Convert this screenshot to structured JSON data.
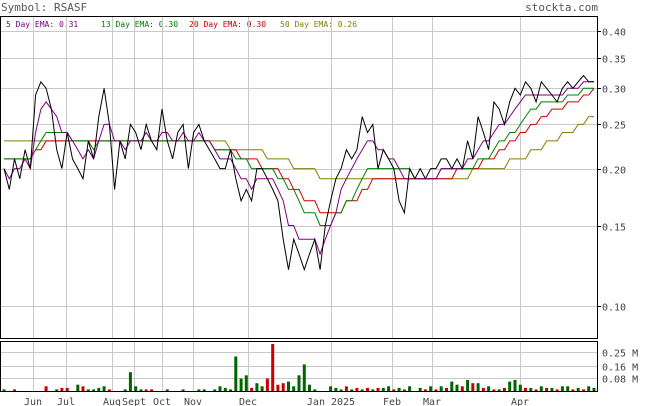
{
  "header": {
    "symbol_label": "Symbol: RSASF",
    "site": "stockta.com"
  },
  "legend": [
    {
      "text": "5 Day EMA: 0.31",
      "color": "#800080"
    },
    {
      "text": "13 Day EMA: 0.30",
      "color": "#008000"
    },
    {
      "text": "20 Day EMA: 0.30",
      "color": "#cc0000"
    },
    {
      "text": "50 Day EMA: 0.26",
      "color": "#808000"
    }
  ],
  "chart_data": {
    "type": "line",
    "y_scale": "log",
    "ylim": [
      0.085,
      0.43
    ],
    "price_ticks": [
      "0.40",
      "0.35",
      "0.30",
      "0.25",
      "0.20",
      "0.15",
      "0.10"
    ],
    "volume_ticks": [
      "0.25 M",
      "0.16 M",
      "0.08 M"
    ],
    "volume_max": 0.3,
    "x_labels": [
      "Jun",
      "Jul",
      "Aug",
      "Sept",
      "Oct",
      "Nov",
      "Dec",
      "Jan 2025",
      "Feb",
      "Mar",
      "Apr"
    ],
    "series": [
      {
        "color": "#000000",
        "values": [
          0.2,
          0.18,
          0.21,
          0.19,
          0.22,
          0.2,
          0.29,
          0.31,
          0.3,
          0.27,
          0.22,
          0.2,
          0.24,
          0.21,
          0.2,
          0.19,
          0.23,
          0.21,
          0.26,
          0.3,
          0.25,
          0.18,
          0.23,
          0.21,
          0.25,
          0.24,
          0.22,
          0.25,
          0.23,
          0.22,
          0.27,
          0.23,
          0.21,
          0.24,
          0.25,
          0.2,
          0.24,
          0.25,
          0.23,
          0.22,
          0.21,
          0.2,
          0.2,
          0.22,
          0.19,
          0.17,
          0.18,
          0.17,
          0.2,
          0.2,
          0.19,
          0.18,
          0.17,
          0.14,
          0.12,
          0.14,
          0.13,
          0.12,
          0.13,
          0.14,
          0.12,
          0.15,
          0.17,
          0.19,
          0.2,
          0.22,
          0.21,
          0.22,
          0.26,
          0.24,
          0.25,
          0.2,
          0.22,
          0.21,
          0.2,
          0.17,
          0.16,
          0.2,
          0.19,
          0.2,
          0.19,
          0.2,
          0.2,
          0.21,
          0.21,
          0.2,
          0.21,
          0.2,
          0.23,
          0.21,
          0.26,
          0.24,
          0.22,
          0.28,
          0.27,
          0.25,
          0.28,
          0.3,
          0.29,
          0.31,
          0.3,
          0.28,
          0.31,
          0.3,
          0.29,
          0.28,
          0.3,
          0.31,
          0.3,
          0.31,
          0.32,
          0.31,
          0.31
        ],
        "name": ""
      },
      {
        "color": "#800080",
        "values": [
          0.2,
          0.19,
          0.2,
          0.2,
          0.21,
          0.2,
          0.24,
          0.27,
          0.28,
          0.27,
          0.26,
          0.24,
          0.24,
          0.23,
          0.22,
          0.21,
          0.22,
          0.21,
          0.23,
          0.25,
          0.25,
          0.23,
          0.23,
          0.22,
          0.23,
          0.23,
          0.23,
          0.24,
          0.23,
          0.23,
          0.24,
          0.24,
          0.23,
          0.23,
          0.24,
          0.23,
          0.23,
          0.24,
          0.23,
          0.23,
          0.22,
          0.21,
          0.21,
          0.21,
          0.2,
          0.19,
          0.19,
          0.18,
          0.19,
          0.19,
          0.19,
          0.19,
          0.18,
          0.17,
          0.15,
          0.15,
          0.14,
          0.14,
          0.14,
          0.14,
          0.13,
          0.14,
          0.15,
          0.16,
          0.18,
          0.19,
          0.2,
          0.21,
          0.22,
          0.23,
          0.23,
          0.22,
          0.22,
          0.21,
          0.21,
          0.2,
          0.19,
          0.19,
          0.19,
          0.19,
          0.19,
          0.19,
          0.19,
          0.2,
          0.2,
          0.2,
          0.2,
          0.2,
          0.21,
          0.21,
          0.22,
          0.23,
          0.23,
          0.24,
          0.25,
          0.25,
          0.26,
          0.27,
          0.28,
          0.29,
          0.29,
          0.29,
          0.29,
          0.29,
          0.29,
          0.29,
          0.29,
          0.3,
          0.3,
          0.3,
          0.31,
          0.31,
          0.31
        ],
        "name": ""
      },
      {
        "color": "#008000",
        "values": [
          0.21,
          0.21,
          0.21,
          0.21,
          0.21,
          0.21,
          0.22,
          0.23,
          0.24,
          0.24,
          0.24,
          0.24,
          0.24,
          0.23,
          0.23,
          0.23,
          0.23,
          0.22,
          0.23,
          0.23,
          0.23,
          0.23,
          0.23,
          0.23,
          0.23,
          0.23,
          0.23,
          0.23,
          0.23,
          0.23,
          0.23,
          0.23,
          0.23,
          0.23,
          0.23,
          0.23,
          0.23,
          0.23,
          0.23,
          0.23,
          0.22,
          0.22,
          0.22,
          0.22,
          0.21,
          0.21,
          0.21,
          0.2,
          0.2,
          0.2,
          0.2,
          0.2,
          0.19,
          0.19,
          0.18,
          0.18,
          0.17,
          0.16,
          0.16,
          0.16,
          0.15,
          0.15,
          0.15,
          0.16,
          0.16,
          0.17,
          0.17,
          0.18,
          0.19,
          0.2,
          0.2,
          0.2,
          0.2,
          0.2,
          0.2,
          0.2,
          0.2,
          0.2,
          0.19,
          0.19,
          0.19,
          0.19,
          0.19,
          0.2,
          0.2,
          0.2,
          0.2,
          0.2,
          0.2,
          0.2,
          0.21,
          0.21,
          0.21,
          0.22,
          0.23,
          0.23,
          0.24,
          0.24,
          0.25,
          0.26,
          0.27,
          0.27,
          0.28,
          0.28,
          0.28,
          0.28,
          0.28,
          0.29,
          0.29,
          0.29,
          0.3,
          0.3,
          0.3
        ],
        "name": ""
      },
      {
        "color": "#cc0000",
        "values": [
          0.21,
          0.21,
          0.21,
          0.21,
          0.21,
          0.21,
          0.22,
          0.22,
          0.23,
          0.23,
          0.23,
          0.23,
          0.23,
          0.23,
          0.23,
          0.23,
          0.23,
          0.23,
          0.23,
          0.23,
          0.23,
          0.23,
          0.23,
          0.23,
          0.23,
          0.23,
          0.23,
          0.23,
          0.23,
          0.23,
          0.23,
          0.23,
          0.23,
          0.23,
          0.23,
          0.23,
          0.23,
          0.23,
          0.23,
          0.23,
          0.22,
          0.22,
          0.22,
          0.22,
          0.22,
          0.21,
          0.21,
          0.21,
          0.21,
          0.2,
          0.2,
          0.2,
          0.2,
          0.19,
          0.19,
          0.18,
          0.18,
          0.17,
          0.17,
          0.17,
          0.16,
          0.16,
          0.16,
          0.16,
          0.16,
          0.17,
          0.17,
          0.17,
          0.18,
          0.18,
          0.19,
          0.19,
          0.19,
          0.19,
          0.19,
          0.19,
          0.19,
          0.19,
          0.19,
          0.19,
          0.19,
          0.19,
          0.19,
          0.19,
          0.19,
          0.19,
          0.2,
          0.2,
          0.2,
          0.2,
          0.2,
          0.21,
          0.21,
          0.21,
          0.22,
          0.22,
          0.23,
          0.23,
          0.24,
          0.24,
          0.25,
          0.25,
          0.26,
          0.26,
          0.27,
          0.27,
          0.27,
          0.28,
          0.28,
          0.28,
          0.29,
          0.29,
          0.3
        ],
        "name": ""
      },
      {
        "color": "#808000",
        "values": [
          0.23,
          0.23,
          0.23,
          0.23,
          0.23,
          0.23,
          0.23,
          0.23,
          0.23,
          0.23,
          0.23,
          0.23,
          0.23,
          0.23,
          0.23,
          0.23,
          0.23,
          0.23,
          0.23,
          0.23,
          0.23,
          0.23,
          0.23,
          0.23,
          0.23,
          0.23,
          0.23,
          0.23,
          0.23,
          0.23,
          0.23,
          0.23,
          0.23,
          0.23,
          0.23,
          0.23,
          0.23,
          0.23,
          0.23,
          0.23,
          0.23,
          0.23,
          0.23,
          0.22,
          0.22,
          0.22,
          0.22,
          0.22,
          0.22,
          0.22,
          0.21,
          0.21,
          0.21,
          0.21,
          0.21,
          0.2,
          0.2,
          0.2,
          0.2,
          0.2,
          0.19,
          0.19,
          0.19,
          0.19,
          0.19,
          0.19,
          0.19,
          0.19,
          0.19,
          0.19,
          0.19,
          0.19,
          0.19,
          0.19,
          0.19,
          0.19,
          0.19,
          0.19,
          0.19,
          0.19,
          0.19,
          0.19,
          0.19,
          0.19,
          0.19,
          0.19,
          0.19,
          0.19,
          0.19,
          0.2,
          0.2,
          0.2,
          0.2,
          0.2,
          0.2,
          0.2,
          0.21,
          0.21,
          0.21,
          0.21,
          0.22,
          0.22,
          0.22,
          0.23,
          0.23,
          0.23,
          0.24,
          0.24,
          0.24,
          0.25,
          0.25,
          0.26,
          0.26
        ],
        "name": ""
      }
    ],
    "volume": [
      {
        "v": 0.01,
        "c": "g"
      },
      {
        "v": 0.0,
        "c": "g"
      },
      {
        "v": 0.01,
        "c": "r"
      },
      {
        "v": 0.0,
        "c": "g"
      },
      {
        "v": 0.0,
        "c": "g"
      },
      {
        "v": 0.0,
        "c": "g"
      },
      {
        "v": 0.0,
        "c": "g"
      },
      {
        "v": 0.0,
        "c": "g"
      },
      {
        "v": 0.03,
        "c": "r"
      },
      {
        "v": 0.0,
        "c": "g"
      },
      {
        "v": 0.01,
        "c": "g"
      },
      {
        "v": 0.02,
        "c": "r"
      },
      {
        "v": 0.02,
        "c": "r"
      },
      {
        "v": 0.0,
        "c": "g"
      },
      {
        "v": 0.04,
        "c": "g"
      },
      {
        "v": 0.03,
        "c": "r"
      },
      {
        "v": 0.01,
        "c": "g"
      },
      {
        "v": 0.01,
        "c": "g"
      },
      {
        "v": 0.02,
        "c": "g"
      },
      {
        "v": 0.03,
        "c": "g"
      },
      {
        "v": 0.01,
        "c": "r"
      },
      {
        "v": 0.0,
        "c": "g"
      },
      {
        "v": 0.0,
        "c": "g"
      },
      {
        "v": 0.01,
        "c": "g"
      },
      {
        "v": 0.12,
        "c": "g"
      },
      {
        "v": 0.03,
        "c": "g"
      },
      {
        "v": 0.01,
        "c": "g"
      },
      {
        "v": 0.01,
        "c": "r"
      },
      {
        "v": 0.01,
        "c": "r"
      },
      {
        "v": 0.0,
        "c": "g"
      },
      {
        "v": 0.0,
        "c": "g"
      },
      {
        "v": 0.01,
        "c": "g"
      },
      {
        "v": 0.0,
        "c": "g"
      },
      {
        "v": 0.0,
        "c": "g"
      },
      {
        "v": 0.01,
        "c": "g"
      },
      {
        "v": 0.0,
        "c": "g"
      },
      {
        "v": 0.0,
        "c": "g"
      },
      {
        "v": 0.01,
        "c": "g"
      },
      {
        "v": 0.01,
        "c": "g"
      },
      {
        "v": 0.0,
        "c": "g"
      },
      {
        "v": 0.01,
        "c": "g"
      },
      {
        "v": 0.03,
        "c": "g"
      },
      {
        "v": 0.02,
        "c": "g"
      },
      {
        "v": 0.01,
        "c": "g"
      },
      {
        "v": 0.22,
        "c": "g"
      },
      {
        "v": 0.08,
        "c": "g"
      },
      {
        "v": 0.1,
        "c": "g"
      },
      {
        "v": 0.02,
        "c": "r"
      },
      {
        "v": 0.05,
        "c": "g"
      },
      {
        "v": 0.03,
        "c": "g"
      },
      {
        "v": 0.08,
        "c": "r"
      },
      {
        "v": 0.3,
        "c": "r"
      },
      {
        "v": 0.04,
        "c": "r"
      },
      {
        "v": 0.05,
        "c": "r"
      },
      {
        "v": 0.06,
        "c": "g"
      },
      {
        "v": 0.03,
        "c": "g"
      },
      {
        "v": 0.1,
        "c": "g"
      },
      {
        "v": 0.17,
        "c": "g"
      },
      {
        "v": 0.04,
        "c": "g"
      },
      {
        "v": 0.01,
        "c": "g"
      },
      {
        "v": 0.0,
        "c": "g"
      },
      {
        "v": 0.0,
        "c": "g"
      },
      {
        "v": 0.03,
        "c": "g"
      },
      {
        "v": 0.02,
        "c": "g"
      },
      {
        "v": 0.01,
        "c": "g"
      },
      {
        "v": 0.03,
        "c": "r"
      },
      {
        "v": 0.01,
        "c": "g"
      },
      {
        "v": 0.02,
        "c": "r"
      },
      {
        "v": 0.01,
        "c": "g"
      },
      {
        "v": 0.02,
        "c": "r"
      },
      {
        "v": 0.01,
        "c": "g"
      },
      {
        "v": 0.02,
        "c": "r"
      },
      {
        "v": 0.02,
        "c": "g"
      },
      {
        "v": 0.03,
        "c": "g"
      },
      {
        "v": 0.01,
        "c": "r"
      },
      {
        "v": 0.02,
        "c": "g"
      },
      {
        "v": 0.01,
        "c": "r"
      },
      {
        "v": 0.03,
        "c": "g"
      },
      {
        "v": 0.0,
        "c": "g"
      },
      {
        "v": 0.02,
        "c": "g"
      },
      {
        "v": 0.01,
        "c": "r"
      },
      {
        "v": 0.03,
        "c": "g"
      },
      {
        "v": 0.01,
        "c": "r"
      },
      {
        "v": 0.03,
        "c": "g"
      },
      {
        "v": 0.02,
        "c": "r"
      },
      {
        "v": 0.06,
        "c": "g"
      },
      {
        "v": 0.04,
        "c": "g"
      },
      {
        "v": 0.03,
        "c": "r"
      },
      {
        "v": 0.07,
        "c": "g"
      },
      {
        "v": 0.05,
        "c": "r"
      },
      {
        "v": 0.05,
        "c": "g"
      },
      {
        "v": 0.02,
        "c": "r"
      },
      {
        "v": 0.03,
        "c": "g"
      },
      {
        "v": 0.01,
        "c": "r"
      },
      {
        "v": 0.01,
        "c": "g"
      },
      {
        "v": 0.02,
        "c": "r"
      },
      {
        "v": 0.06,
        "c": "g"
      },
      {
        "v": 0.07,
        "c": "g"
      },
      {
        "v": 0.04,
        "c": "g"
      },
      {
        "v": 0.02,
        "c": "r"
      },
      {
        "v": 0.02,
        "c": "g"
      },
      {
        "v": 0.01,
        "c": "r"
      },
      {
        "v": 0.03,
        "c": "g"
      },
      {
        "v": 0.02,
        "c": "r"
      },
      {
        "v": 0.02,
        "c": "g"
      },
      {
        "v": 0.01,
        "c": "r"
      },
      {
        "v": 0.03,
        "c": "g"
      },
      {
        "v": 0.03,
        "c": "g"
      },
      {
        "v": 0.01,
        "c": "r"
      },
      {
        "v": 0.02,
        "c": "g"
      },
      {
        "v": 0.01,
        "c": "r"
      },
      {
        "v": 0.03,
        "c": "g"
      },
      {
        "v": 0.02,
        "c": "g"
      }
    ]
  },
  "colors": {
    "up": "#006400",
    "down": "#cc0000",
    "grid": "#c8c8c8",
    "axis": "#000000"
  }
}
